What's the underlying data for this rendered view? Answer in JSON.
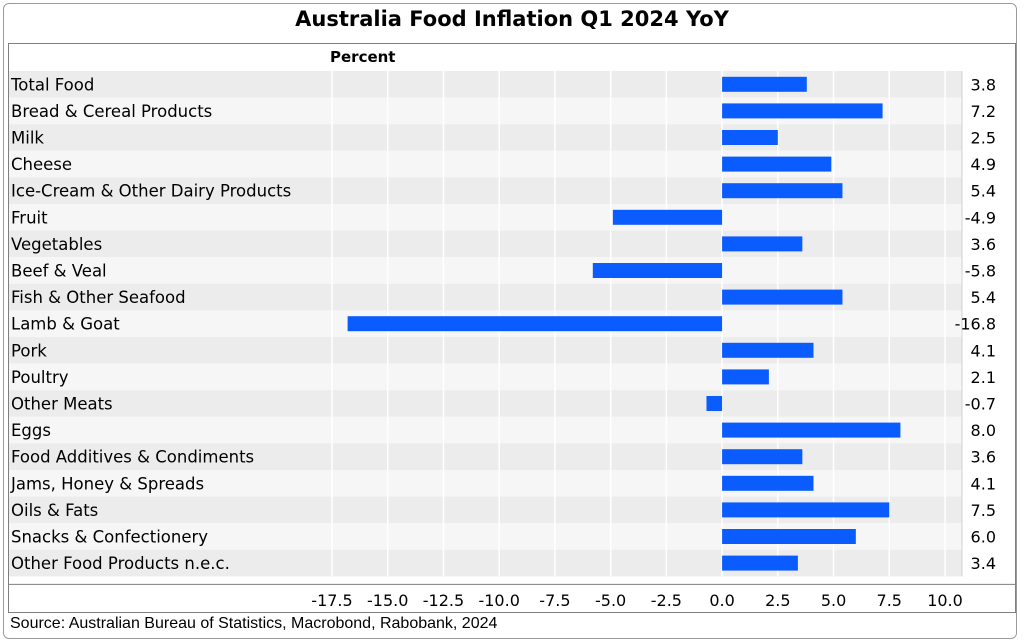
{
  "chart_data": {
    "type": "bar",
    "orientation": "horizontal",
    "title": "Australia Food Inflation Q1 2024 YoY",
    "ylabel": "Percent",
    "xlim": [
      -17.5,
      10.0
    ],
    "xticks": [
      "-17.5",
      "-15.0",
      "-12.5",
      "-10.0",
      "-7.5",
      "-5.0",
      "-2.5",
      "0.0",
      "2.5",
      "5.0",
      "7.5",
      "10.0"
    ],
    "grid": true,
    "bar_color": "#0a5cff",
    "categories": [
      "Total Food",
      "Bread & Cereal Products",
      "Milk",
      "Cheese",
      "Ice-Cream & Other Dairy Products",
      "Fruit",
      "Vegetables",
      "Beef & Veal",
      "Fish & Other Seafood",
      "Lamb & Goat",
      "Pork",
      "Poultry",
      "Other Meats",
      "Eggs",
      "Food Additives & Condiments",
      "Jams, Honey & Spreads",
      "Oils & Fats",
      "Snacks & Confectionery",
      "Other Food Products n.e.c."
    ],
    "values": [
      3.8,
      7.2,
      2.5,
      4.9,
      5.4,
      -4.9,
      3.6,
      -5.8,
      5.4,
      -16.8,
      4.1,
      2.1,
      -0.7,
      8.0,
      3.6,
      4.1,
      7.5,
      6.0,
      3.4
    ],
    "value_labels": [
      "3.8",
      "7.2",
      "2.5",
      "4.9",
      "5.4",
      "-4.9",
      "3.6",
      "-5.8",
      "5.4",
      "-16.8",
      "4.1",
      "2.1",
      "-0.7",
      "8.0",
      "3.6",
      "4.1",
      "7.5",
      "6.0",
      "3.4"
    ]
  },
  "source": "Source: Australian Bureau of Statistics, Macrobond, Rabobank, 2024"
}
